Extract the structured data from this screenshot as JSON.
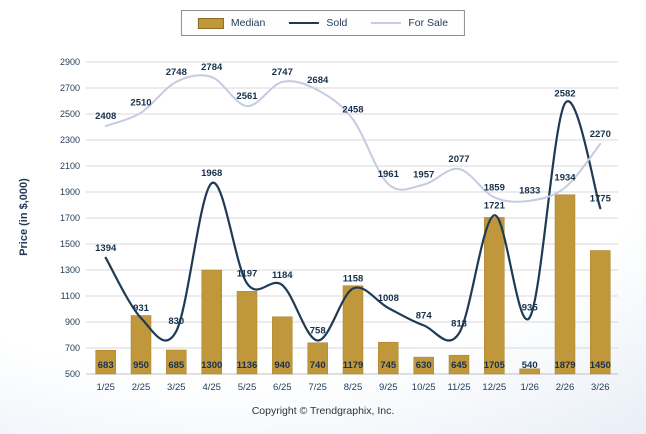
{
  "legend": {
    "items": [
      {
        "label": "Median",
        "type": "bar"
      },
      {
        "label": "Sold",
        "type": "line"
      },
      {
        "label": "For Sale",
        "type": "line"
      }
    ]
  },
  "axes": {
    "y_label": "Price (in $,000)"
  },
  "footer": {
    "copyright": "Copyright © Trendgraphix, Inc."
  },
  "colors": {
    "median_bar": "#c0973b",
    "median_bar_edge": "#a5812f",
    "sold_line": "#1f3a54",
    "for_sale_line": "#c6cbe0",
    "label_text": "#17314d",
    "gridline": "#d9d9d9",
    "baseline": "#c0c0c0"
  },
  "chart_data": {
    "type": "bar",
    "combo": "bar+line",
    "title": "",
    "xlabel": "",
    "ylabel": "Price (in $,000)",
    "ylim": [
      500,
      2900
    ],
    "y_tick_step": 200,
    "grid": true,
    "legend_position": "top",
    "categories": [
      "1/25",
      "2/25",
      "3/25",
      "4/25",
      "5/25",
      "6/25",
      "7/25",
      "8/25",
      "9/25",
      "10/25",
      "11/25",
      "12/25",
      "1/26",
      "2/26",
      "3/26"
    ],
    "series": [
      {
        "name": "Median",
        "type": "bar",
        "color": "#c0973b",
        "values": [
          683,
          950,
          685,
          1300,
          1136,
          940,
          740,
          1179,
          745,
          630,
          645,
          1705,
          540,
          1879,
          1450
        ]
      },
      {
        "name": "Sold",
        "type": "line",
        "color": "#1f3a54",
        "values": [
          1394,
          931,
          830,
          1968,
          1197,
          1184,
          758,
          1158,
          1008,
          874,
          813,
          1721,
          935,
          2582,
          1775
        ]
      },
      {
        "name": "For Sale",
        "type": "line",
        "color": "#c6cbe0",
        "values": [
          2408,
          2510,
          2748,
          2784,
          2561,
          2747,
          2684,
          2458,
          1961,
          1957,
          2077,
          1859,
          1833,
          1934,
          2270
        ]
      }
    ]
  }
}
